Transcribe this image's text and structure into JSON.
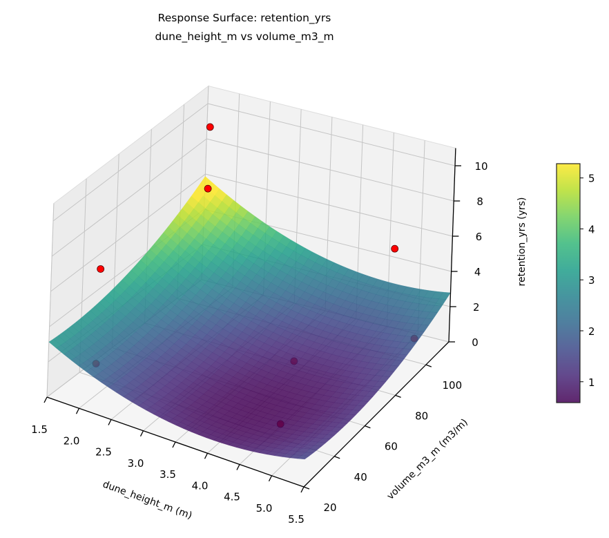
{
  "chart_data": {
    "type": "surface3d",
    "title_line1": "Response Surface: retention_yrs",
    "title_line2": "dune_height_m vs volume_m3_m",
    "xlabel": "dune_height_m (m)",
    "ylabel": "volume_m3_m (m3/m)",
    "zlabel": "retention_yrs (yrs)",
    "xlim": [
      1.5,
      5.5
    ],
    "ylim": [
      20,
      115
    ],
    "zlim": [
      0,
      11
    ],
    "x_ticks": [
      "1.5",
      "2.0",
      "2.5",
      "3.0",
      "3.5",
      "4.0",
      "4.5",
      "5.0",
      "5.5"
    ],
    "y_ticks": [
      "20",
      "40",
      "60",
      "80",
      "100"
    ],
    "z_ticks": [
      "0",
      "2",
      "4",
      "6",
      "8",
      "10"
    ],
    "colormap": "viridis",
    "colorbar": {
      "range": [
        0.59,
        5.28
      ],
      "ticks": [
        "1",
        "2",
        "3",
        "4",
        "5"
      ]
    },
    "surface_model": {
      "c0": 0.6,
      "x0": 4.2,
      "y0": 45,
      "a": 0.35,
      "b": 0.0004,
      "d": -0.004
    },
    "surface_alpha": 0.85,
    "points": [
      {
        "x": 1.6,
        "y": 113,
        "z": 8.9,
        "visible": true
      },
      {
        "x": 1.6,
        "y": 113,
        "z": 5.4,
        "visible": true
      },
      {
        "x": 1.5,
        "y": 51,
        "z": 5.1,
        "visible": true
      },
      {
        "x": 4.7,
        "y": 110,
        "z": 5.0,
        "visible": true
      },
      {
        "x": 1.8,
        "y": 38,
        "z": 1.0,
        "visible": false
      },
      {
        "x": 4.0,
        "y": 75,
        "z": 0.8,
        "visible": false
      },
      {
        "x": 4.6,
        "y": 42,
        "z": 0.6,
        "visible": false
      },
      {
        "x": 5.3,
        "y": 100,
        "z": 1.3,
        "visible": false
      }
    ],
    "point_color": "#ff0000",
    "grid": true
  }
}
